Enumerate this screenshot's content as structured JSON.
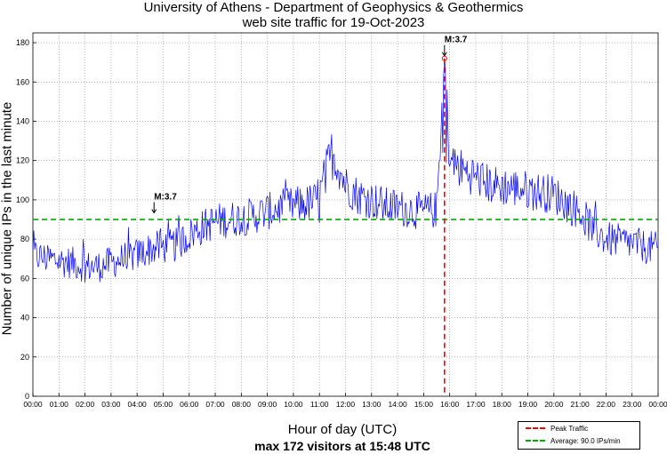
{
  "chart_data": {
    "type": "line",
    "title_line1": "University of Athens - Department of Geophysics & Geothermics",
    "title_line2": "web site traffic for 19-Oct-2023",
    "xlabel": "Hour of day (UTC)",
    "xlabel_sub": "max 172 visitors at 15:48 UTC",
    "ylabel": "Number of unique IPs in the last minute",
    "ylim": [
      0,
      185
    ],
    "xlim_minutes": [
      0,
      1440
    ],
    "y_ticks": [
      0,
      20,
      40,
      60,
      80,
      100,
      120,
      140,
      160,
      180
    ],
    "x_tick_labels": [
      "00:00",
      "01:00",
      "02:00",
      "03:00",
      "04:00",
      "05:00",
      "06:00",
      "07:00",
      "08:00",
      "09:00",
      "10:00",
      "11:00",
      "12:00",
      "13:00",
      "14:00",
      "15:00",
      "16:00",
      "17:00",
      "18:00",
      "19:00",
      "20:00",
      "21:00",
      "22:00",
      "23:00",
      "00:00"
    ],
    "grid": true,
    "series": [
      {
        "name": "Unique IPs",
        "color": "#0000ff",
        "x_hours": [
          0,
          0.5,
          1,
          1.5,
          2,
          2.5,
          3,
          3.5,
          4,
          4.5,
          5,
          5.5,
          6,
          6.5,
          7,
          7.5,
          8,
          8.5,
          9,
          9.5,
          10,
          10.5,
          11,
          11.5,
          12,
          12.5,
          13,
          13.5,
          14,
          14.5,
          15,
          15.5,
          15.8,
          16,
          16.5,
          17,
          17.5,
          18,
          18.5,
          19,
          19.5,
          20,
          20.5,
          21,
          21.5,
          22,
          22.5,
          23,
          23.5,
          24
        ],
        "values": [
          72,
          70,
          69,
          68,
          66,
          66,
          68,
          70,
          72,
          75,
          76,
          77,
          82,
          86,
          89,
          90,
          91,
          92,
          94,
          96,
          97,
          98,
          100,
          124,
          108,
          102,
          100,
          97,
          96,
          95,
          94,
          95,
          172,
          120,
          115,
          112,
          108,
          107,
          106,
          105,
          104,
          103,
          98,
          94,
          85,
          80,
          79,
          78,
          76,
          75
        ]
      }
    ],
    "reference_lines": [
      {
        "name": "Average",
        "orientation": "horizontal",
        "value": 90.0,
        "color": "#00aa00",
        "legend_label": "Average: 90.0 IPs/min"
      },
      {
        "name": "Peak Traffic",
        "orientation": "vertical",
        "x_hours": 15.8,
        "color": "#ff0000",
        "legend_label": "Peak Traffic"
      }
    ],
    "annotations": [
      {
        "text": "M:3.7",
        "x_hours": 4.65,
        "y": 92
      },
      {
        "text": "M:3.7",
        "x_hours": 15.8,
        "y": 172
      }
    ],
    "peak": {
      "x_hours": 15.8,
      "value": 172
    }
  },
  "legend": {
    "items": [
      {
        "label": "Peak Traffic",
        "color": "#ff0000"
      },
      {
        "label": "Average: 90.0 IPs/min",
        "color": "#00aa00"
      }
    ]
  }
}
